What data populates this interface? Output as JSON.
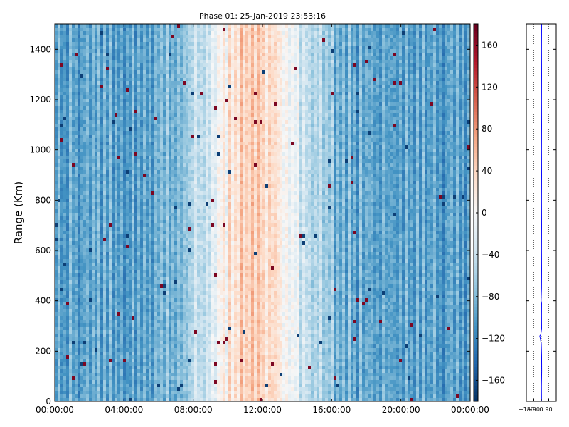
{
  "chart_data": [
    {
      "type": "heatmap",
      "title": "Phase 01: 25-Jan-2019 23:53:16",
      "xlabel": "",
      "ylabel": "Range (Km)",
      "x_tick_labels": [
        "00:00:00",
        "04:00:00",
        "08:00:00",
        "12:00:00",
        "16:00:00",
        "20:00:00",
        "00:00:00"
      ],
      "y_ticks": [
        0,
        200,
        400,
        600,
        800,
        1000,
        1200,
        1400
      ],
      "xlim_hours": [
        0,
        24
      ],
      "ylim": [
        0,
        1500
      ],
      "colormap": "RdBu_r",
      "value_range": [
        -180,
        180
      ],
      "colorbar_ticks": [
        160,
        120,
        80,
        40,
        0,
        -40,
        -80,
        -120,
        -160
      ],
      "grid": false,
      "description_of_field": {
        "baseline_value": -95,
        "warm_center_hour": 11.5,
        "warm_halfwidth_hours": 3.2,
        "warm_peak_value": 45
      }
    },
    {
      "type": "line",
      "title": "",
      "xlabel": "",
      "ylabel": "",
      "x_tick_labels": [
        "-180",
        "-90",
        "0",
        "90"
      ],
      "x_ticks": [
        -180,
        -90,
        0,
        90
      ],
      "xlim": [
        -180,
        180
      ],
      "ylim": [
        0,
        1500
      ],
      "y_ticks": [
        0,
        200,
        400,
        600,
        800,
        1000,
        1200,
        1400
      ],
      "grid": true,
      "series": [
        {
          "color": "#0000ff",
          "points": [
            [
              3,
              0
            ],
            [
              2,
              60
            ],
            [
              5,
              120
            ],
            [
              4,
              180
            ],
            [
              0,
              230
            ],
            [
              -18,
              260
            ],
            [
              -6,
              265
            ],
            [
              4,
              290
            ],
            [
              3,
              340
            ],
            [
              4,
              390
            ],
            [
              -2,
              400
            ],
            [
              3,
              450
            ],
            [
              4,
              520
            ],
            [
              3,
              600
            ],
            [
              4,
              700
            ],
            [
              3,
              800
            ],
            [
              4,
              900
            ],
            [
              3,
              1000
            ],
            [
              4,
              1100
            ],
            [
              3,
              1200
            ],
            [
              4,
              1300
            ],
            [
              3,
              1400
            ],
            [
              4,
              1500
            ]
          ]
        }
      ]
    }
  ]
}
